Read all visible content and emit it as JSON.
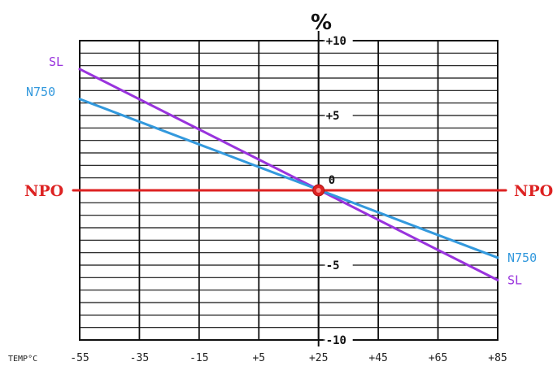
{
  "chart_data": {
    "type": "line",
    "unit_label": "%",
    "xlabel": "TEMP°C",
    "x_ticks": [
      "-55",
      "-35",
      "-15",
      "+5",
      "+25",
      "+45",
      "+65",
      "+85"
    ],
    "y_ticks": [
      "+10",
      "+5",
      "0",
      "-5",
      "-10"
    ],
    "xlim": [
      -55,
      85
    ],
    "ylim": [
      -10,
      10
    ],
    "grid": true,
    "series": [
      {
        "name": "SL",
        "color": "#9933dd",
        "x": [
          -55,
          85
        ],
        "y": [
          8.1,
          -6.0
        ]
      },
      {
        "name": "N750",
        "color": "#3399dd",
        "x": [
          -55,
          85
        ],
        "y": [
          6.1,
          -4.5
        ]
      },
      {
        "name": "NPO",
        "color": "#dd2222",
        "x": [
          -55,
          85
        ],
        "y": [
          0,
          0
        ]
      }
    ]
  }
}
